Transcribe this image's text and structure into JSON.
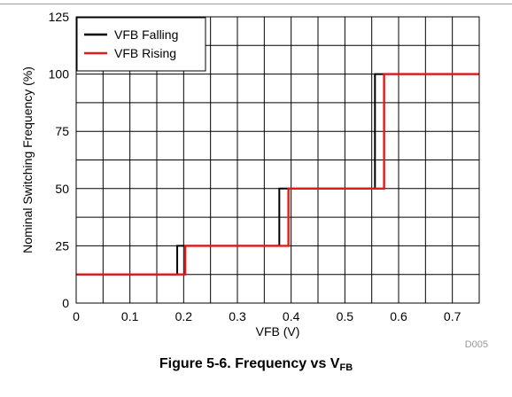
{
  "chart_data": {
    "type": "line",
    "xlabel": "VFB (V)",
    "ylabel": "Nominal Switching Frequency (%)",
    "xlim": [
      0,
      0.75
    ],
    "ylim": [
      0,
      125
    ],
    "x_ticks": [
      0,
      0.1,
      0.2,
      0.3,
      0.4,
      0.5,
      0.6,
      0.7
    ],
    "x_tick_labels": [
      "0",
      "0.1",
      "0.2",
      "0.3",
      "0.4",
      "0.5",
      "0.6",
      "0.7"
    ],
    "y_ticks": [
      0,
      25,
      50,
      75,
      100,
      125
    ],
    "y_tick_labels": [
      "0",
      "25",
      "50",
      "75",
      "100",
      "125"
    ],
    "x_minor_step": 0.05,
    "y_minor_step": 12.5,
    "grid": true,
    "legend_position": "top-left",
    "plot_id": "D005",
    "series": [
      {
        "name": "VFB Falling",
        "color": "#000000",
        "x": [
          0,
          0.188,
          0.188,
          0.378,
          0.378,
          0.556,
          0.556,
          0.75
        ],
        "y": [
          12.5,
          12.5,
          25,
          25,
          50,
          50,
          100,
          100
        ]
      },
      {
        "name": "VFB Rising",
        "color": "#e01b1b",
        "x": [
          0,
          0.203,
          0.203,
          0.395,
          0.395,
          0.573,
          0.573,
          0.75
        ],
        "y": [
          12.5,
          12.5,
          25,
          25,
          50,
          50,
          100,
          100
        ]
      }
    ]
  },
  "caption": {
    "prefix": "Figure 5-6. Frequency vs V",
    "subscript": "FB"
  }
}
